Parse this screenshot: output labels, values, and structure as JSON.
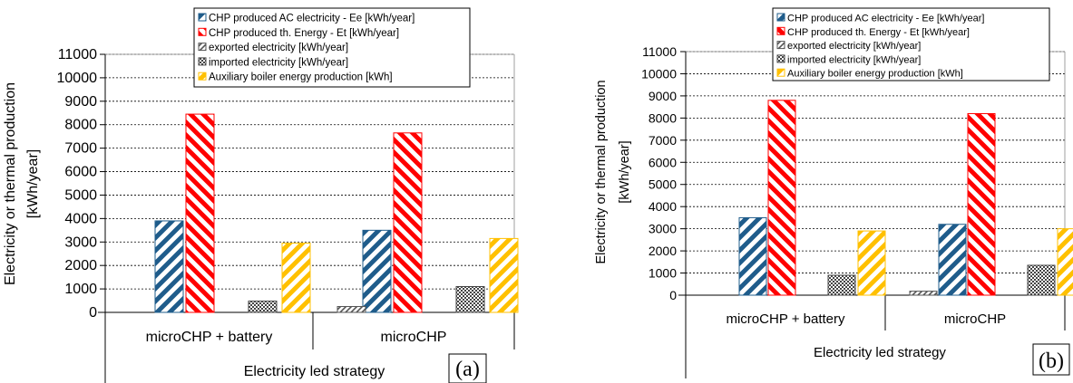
{
  "chart_data": [
    {
      "type": "bar",
      "panel_label": "(a)",
      "ylabel_lines": [
        "Electricity or thermal production",
        "[kWh/year]"
      ],
      "xlabel": "Electricity led strategy",
      "categories": [
        "microCHP + battery",
        "microCHP"
      ],
      "ylim": [
        0,
        11000
      ],
      "yticks": [
        0,
        1000,
        2000,
        3000,
        4000,
        5000,
        6000,
        7000,
        8000,
        9000,
        10000,
        11000
      ],
      "grid": true,
      "legend_position": "top-center",
      "series": [
        {
          "name": "CHP produced AC electricity - Ee [kWh/year]",
          "values": [
            3900,
            3500
          ],
          "color": "#1f5c8b"
        },
        {
          "name": "CHP produced th. Energy - Et [kWh/year]",
          "values": [
            8450,
            7650
          ],
          "color": "#ff0000"
        },
        {
          "name": "exported electricity [kWh/year]",
          "values": [
            0,
            250
          ],
          "color": "#555555"
        },
        {
          "name": "imported electricity [kWh/year]",
          "values": [
            480,
            1100
          ],
          "color": "#444444"
        },
        {
          "name": "Auxiliary boiler energy production [kWh]",
          "values": [
            2950,
            3150
          ],
          "color": "#ffc000"
        }
      ]
    },
    {
      "type": "bar",
      "panel_label": "(b)",
      "ylabel_lines": [
        "Electricity or thermal production",
        "[kWh/year]"
      ],
      "xlabel": "Electricity led strategy",
      "categories": [
        "microCHP + battery",
        "microCHP"
      ],
      "ylim": [
        0,
        11000
      ],
      "yticks": [
        0,
        1000,
        2000,
        3000,
        4000,
        5000,
        6000,
        7000,
        8000,
        9000,
        10000,
        11000
      ],
      "grid": true,
      "legend_position": "top-right",
      "series": [
        {
          "name": "CHP produced AC electricity - Ee [kWh/year]",
          "values": [
            3500,
            3200
          ],
          "color": "#1f5c8b"
        },
        {
          "name": "CHP produced th. Energy - Et [kWh/year]",
          "values": [
            8800,
            8200
          ],
          "color": "#ff0000"
        },
        {
          "name": "exported electricity [kWh/year]",
          "values": [
            0,
            180
          ],
          "color": "#555555"
        },
        {
          "name": "imported electricity [kWh/year]",
          "values": [
            900,
            1350
          ],
          "color": "#444444"
        },
        {
          "name": "Auxiliary boiler energy production [kWh]",
          "values": [
            2900,
            3000
          ],
          "color": "#ffc000"
        }
      ]
    }
  ]
}
